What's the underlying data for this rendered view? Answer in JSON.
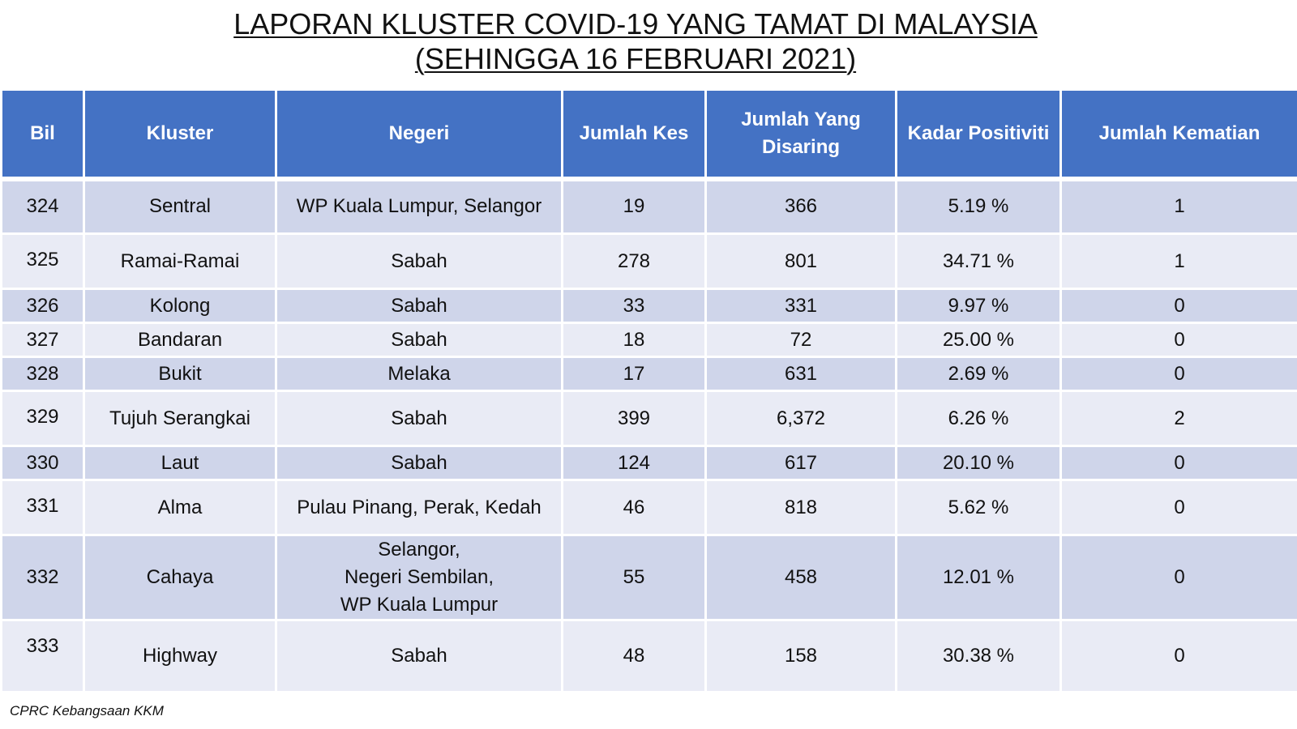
{
  "title": {
    "line1": "LAPORAN KLUSTER COVID-19 YANG TAMAT DI MALAYSIA",
    "line2": "(SEHINGGA 16 FEBRUARI 2021)"
  },
  "table": {
    "headers": {
      "bil": "Bil",
      "kluster": "Kluster",
      "negeri": "Negeri",
      "jumlah_kes": "Jumlah Kes",
      "jumlah_disaring_1": "Jumlah Yang",
      "jumlah_disaring_2": "Disaring",
      "kadar_positiviti": "Kadar Positiviti",
      "jumlah_kematian": "Jumlah Kematian"
    },
    "rows": [
      {
        "bil": "324",
        "kluster": "Sentral",
        "negeri": [
          "WP Kuala Lumpur, Selangor"
        ],
        "kes": "19",
        "disaring": "366",
        "positiviti": "5.19 %",
        "kematian": "1"
      },
      {
        "bil": "325",
        "kluster": "Ramai-Ramai",
        "negeri": [
          "Sabah"
        ],
        "kes": "278",
        "disaring": "801",
        "positiviti": "34.71 %",
        "kematian": "1"
      },
      {
        "bil": "326",
        "kluster": "Kolong",
        "negeri": [
          "Sabah"
        ],
        "kes": "33",
        "disaring": "331",
        "positiviti": "9.97 %",
        "kematian": "0"
      },
      {
        "bil": "327",
        "kluster": "Bandaran",
        "negeri": [
          "Sabah"
        ],
        "kes": "18",
        "disaring": "72",
        "positiviti": "25.00 %",
        "kematian": "0"
      },
      {
        "bil": "328",
        "kluster": "Bukit",
        "negeri": [
          "Melaka"
        ],
        "kes": "17",
        "disaring": "631",
        "positiviti": "2.69 %",
        "kematian": "0"
      },
      {
        "bil": "329",
        "kluster": "Tujuh Serangkai",
        "negeri": [
          "Sabah"
        ],
        "kes": "399",
        "disaring": "6,372",
        "positiviti": "6.26 %",
        "kematian": "2"
      },
      {
        "bil": "330",
        "kluster": "Laut",
        "negeri": [
          "Sabah"
        ],
        "kes": "124",
        "disaring": "617",
        "positiviti": "20.10 %",
        "kematian": "0"
      },
      {
        "bil": "331",
        "kluster": "Alma",
        "negeri": [
          "Pulau Pinang, Perak, Kedah"
        ],
        "kes": "46",
        "disaring": "818",
        "positiviti": "5.62  %",
        "kematian": "0"
      },
      {
        "bil": "332",
        "kluster": "Cahaya",
        "negeri": [
          "Selangor,",
          "Negeri Sembilan,",
          "WP Kuala Lumpur"
        ],
        "kes": "55",
        "disaring": "458",
        "positiviti": "12.01 %",
        "kematian": "0"
      },
      {
        "bil": "333",
        "kluster": "Highway",
        "negeri": [
          "Sabah"
        ],
        "kes": "48",
        "disaring": "158",
        "positiviti": "30.38 %",
        "kematian": "0"
      }
    ]
  },
  "footer": "CPRC Kebangsaan KKM"
}
